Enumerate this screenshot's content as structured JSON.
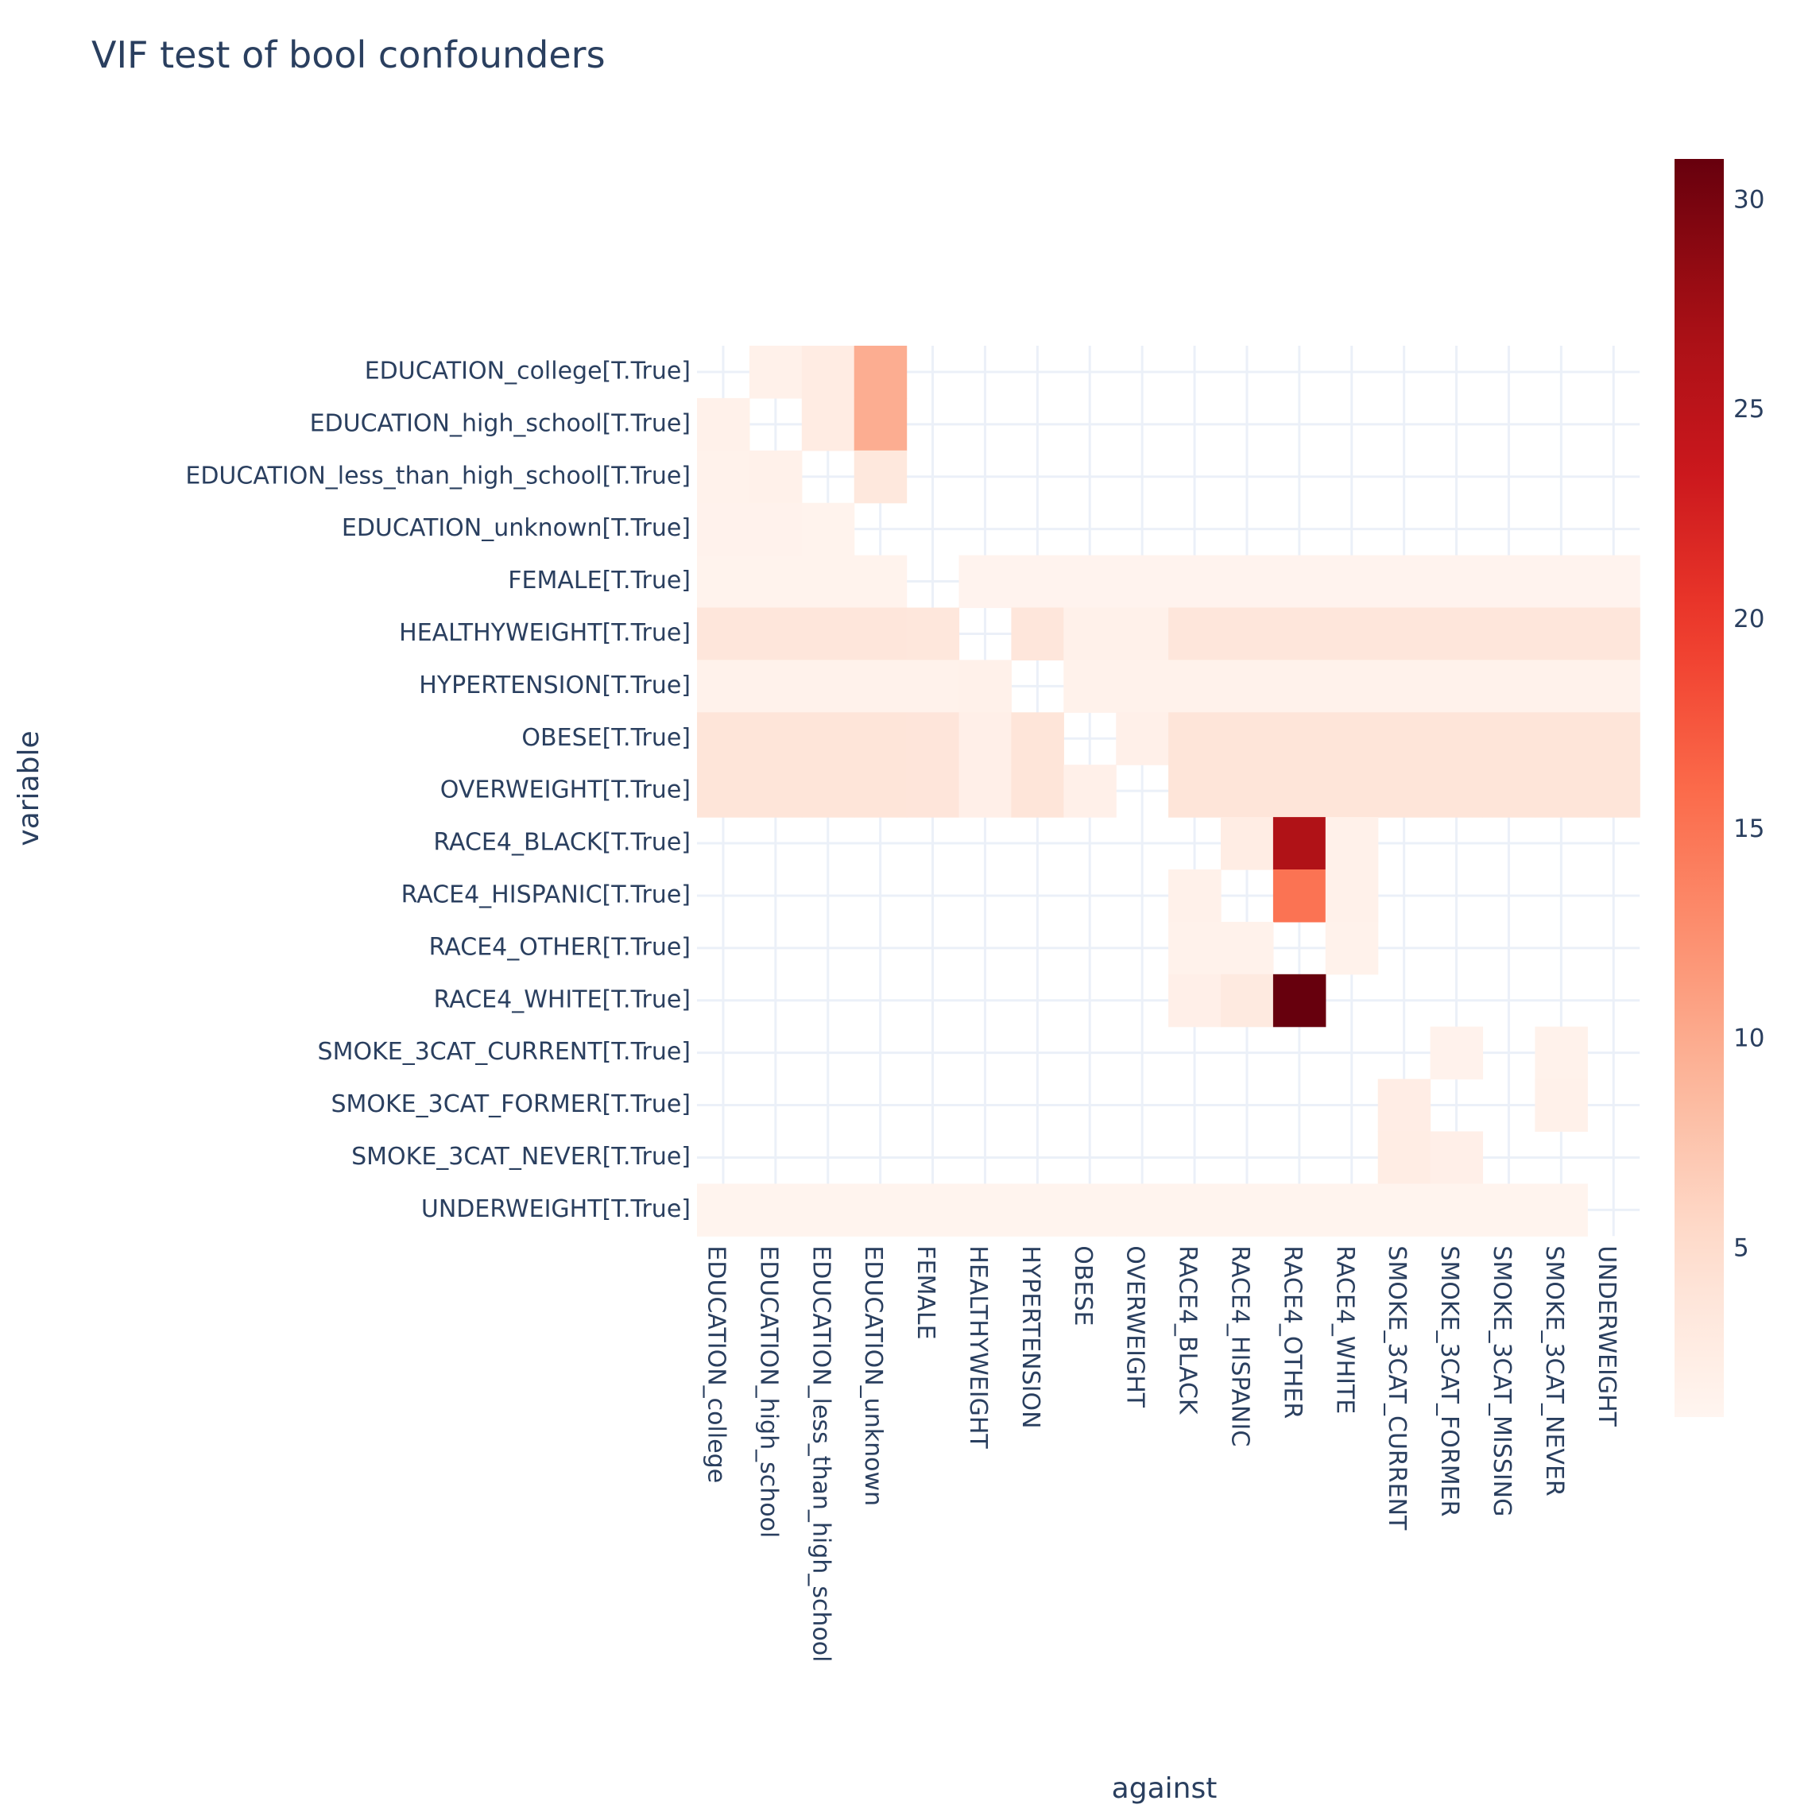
{
  "chart_data": {
    "type": "heatmap",
    "title": "VIF test of bool confounders",
    "xlabel": "against",
    "ylabel": "variable",
    "x_categories": [
      "EDUCATION_college",
      "EDUCATION_high_school",
      "EDUCATION_less_than_high_school",
      "EDUCATION_unknown",
      "FEMALE",
      "HEALTHYWEIGHT",
      "HYPERTENSION",
      "OBESE",
      "OVERWEIGHT",
      "RACE4_BLACK",
      "RACE4_HISPANIC",
      "RACE4_OTHER",
      "RACE4_WHITE",
      "SMOKE_3CAT_CURRENT",
      "SMOKE_3CAT_FORMER",
      "SMOKE_3CAT_MISSING",
      "SMOKE_3CAT_NEVER",
      "UNDERWEIGHT"
    ],
    "y_categories": [
      "EDUCATION_college[T.True]",
      "EDUCATION_high_school[T.True]",
      "EDUCATION_less_than_high_school[T.True]",
      "EDUCATION_unknown[T.True]",
      "FEMALE[T.True]",
      "HEALTHYWEIGHT[T.True]",
      "HYPERTENSION[T.True]",
      "OBESE[T.True]",
      "OVERWEIGHT[T.True]",
      "RACE4_BLACK[T.True]",
      "RACE4_HISPANIC[T.True]",
      "RACE4_OTHER[T.True]",
      "RACE4_WHITE[T.True]",
      "SMOKE_3CAT_CURRENT[T.True]",
      "SMOKE_3CAT_FORMER[T.True]",
      "SMOKE_3CAT_NEVER[T.True]",
      "UNDERWEIGHT[T.True]"
    ],
    "z": [
      [
        null,
        1.8,
        2.6,
        9.8,
        null,
        null,
        null,
        null,
        null,
        null,
        null,
        null,
        null,
        null,
        null,
        null,
        null,
        null
      ],
      [
        1.8,
        null,
        2.6,
        9.8,
        null,
        null,
        null,
        null,
        null,
        null,
        null,
        null,
        null,
        null,
        null,
        null,
        null,
        null
      ],
      [
        1.6,
        1.7,
        null,
        3.4,
        null,
        null,
        null,
        null,
        null,
        null,
        null,
        null,
        null,
        null,
        null,
        null,
        null,
        null
      ],
      [
        1.5,
        1.5,
        1.4,
        null,
        null,
        null,
        null,
        null,
        null,
        null,
        null,
        null,
        null,
        null,
        null,
        null,
        null,
        null
      ],
      [
        1.4,
        1.4,
        1.4,
        1.4,
        null,
        1.3,
        1.3,
        1.3,
        1.3,
        1.3,
        1.3,
        1.3,
        1.3,
        1.3,
        1.3,
        1.3,
        1.3,
        1.3
      ],
      [
        3.6,
        3.6,
        3.6,
        3.6,
        3.5,
        null,
        3.6,
        1.8,
        1.8,
        3.6,
        3.6,
        3.6,
        3.6,
        3.6,
        3.6,
        3.6,
        3.6,
        3.6
      ],
      [
        1.6,
        1.6,
        1.6,
        1.6,
        1.6,
        1.7,
        null,
        1.6,
        1.6,
        1.6,
        1.6,
        1.6,
        1.6,
        1.6,
        1.6,
        1.6,
        1.6,
        1.6
      ],
      [
        3.9,
        3.9,
        3.9,
        3.9,
        3.8,
        2.0,
        3.9,
        null,
        1.9,
        3.9,
        3.9,
        3.9,
        3.9,
        3.9,
        3.9,
        3.9,
        3.9,
        3.9
      ],
      [
        3.9,
        3.9,
        3.9,
        3.9,
        3.8,
        2.0,
        3.9,
        1.9,
        null,
        3.9,
        3.9,
        3.9,
        3.9,
        3.9,
        3.9,
        3.9,
        3.9,
        3.9
      ],
      [
        null,
        null,
        null,
        null,
        null,
        null,
        null,
        null,
        null,
        null,
        2.5,
        26.2,
        1.7,
        null,
        null,
        null,
        null,
        null
      ],
      [
        null,
        null,
        null,
        null,
        null,
        null,
        null,
        null,
        null,
        1.7,
        null,
        15.2,
        1.7,
        null,
        null,
        null,
        null,
        null
      ],
      [
        null,
        null,
        null,
        null,
        null,
        null,
        null,
        null,
        null,
        1.6,
        1.6,
        null,
        1.6,
        null,
        null,
        null,
        null,
        null
      ],
      [
        null,
        null,
        null,
        null,
        null,
        null,
        null,
        null,
        null,
        2.0,
        3.0,
        31.0,
        null,
        null,
        null,
        null,
        null,
        null
      ],
      [
        null,
        null,
        null,
        null,
        null,
        null,
        null,
        null,
        null,
        null,
        null,
        null,
        null,
        null,
        1.5,
        null,
        1.6,
        null
      ],
      [
        null,
        null,
        null,
        null,
        null,
        null,
        null,
        null,
        null,
        null,
        null,
        null,
        null,
        2.4,
        null,
        null,
        1.7,
        null
      ],
      [
        null,
        null,
        null,
        null,
        null,
        null,
        null,
        null,
        null,
        null,
        null,
        null,
        null,
        2.5,
        2.0,
        null,
        null,
        null
      ],
      [
        1.2,
        1.2,
        1.2,
        1.2,
        1.2,
        1.2,
        1.2,
        1.2,
        1.2,
        1.2,
        1.2,
        1.2,
        1.2,
        1.2,
        1.2,
        1.2,
        1.2,
        null
      ]
    ],
    "zmin": 1.0,
    "zmax": 31.0,
    "colorscale": "Reds",
    "colorbar_ticks": [
      5,
      10,
      15,
      20,
      25,
      30
    ],
    "grid": true,
    "colorbar_position": "right"
  }
}
